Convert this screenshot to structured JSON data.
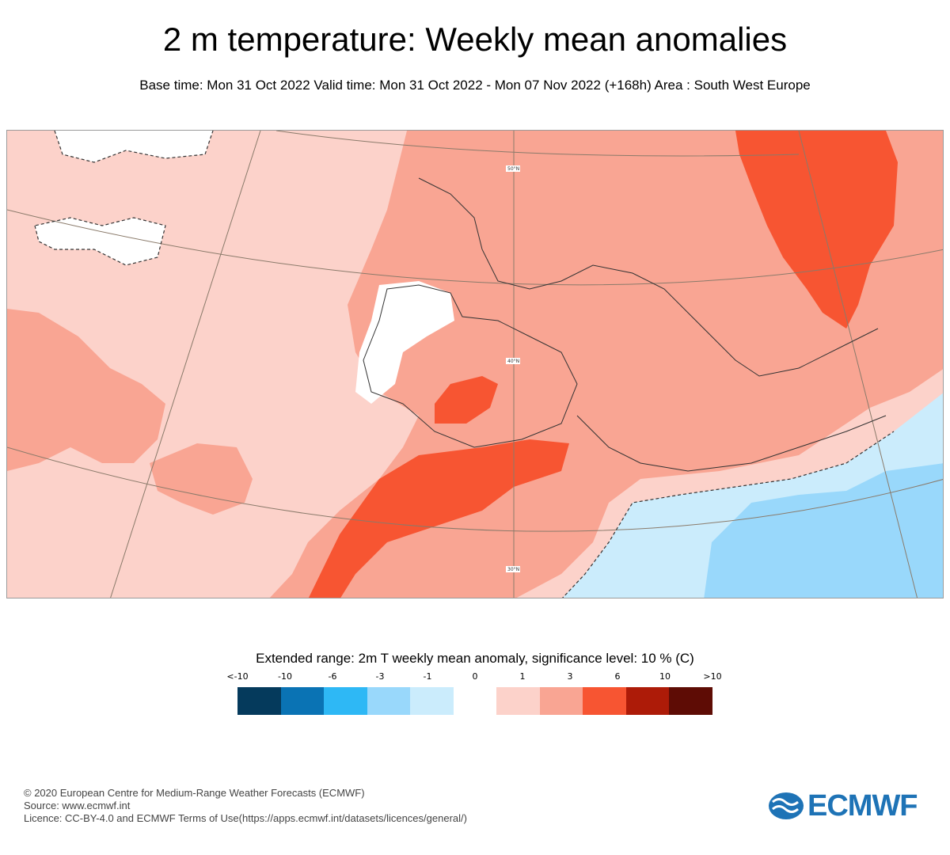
{
  "header": {
    "title": "2 m temperature: Weekly mean anomalies",
    "subtitle": "Base time: Mon 31 Oct 2022 Valid time: Mon 31 Oct 2022 - Mon 07 Nov 2022 (+168h) Area : South West Europe"
  },
  "map": {
    "lat_labels": [
      "50°N",
      "40°N",
      "30°N"
    ]
  },
  "legend": {
    "title": "Extended range: 2m T weekly mean anomaly, significance level: 10 % (C)",
    "labels": [
      "<-10",
      "-10",
      "-6",
      "-3",
      "-1",
      "0",
      "1",
      "3",
      "6",
      "10",
      ">10"
    ],
    "colors": [
      "#053a5c",
      "#0a73b4",
      "#2eb8f5",
      "#99d8fb",
      "#cbecfc",
      "#ffffff",
      "#fcd2ca",
      "#f9a593",
      "#f75532",
      "#ad1b08",
      "#5e0c05"
    ]
  },
  "footer": {
    "copyright": "© 2020 European Centre for Medium-Range Weather Forecasts (ECMWF)",
    "source": "Source: www.ecmwf.int",
    "licence": "Licence: CC-BY-4.0 and ECMWF Terms of Use(https://apps.ecmwf.int/datasets/licences/general/)"
  },
  "logo": {
    "text": "ECMWF",
    "color": "#1e73b6"
  }
}
